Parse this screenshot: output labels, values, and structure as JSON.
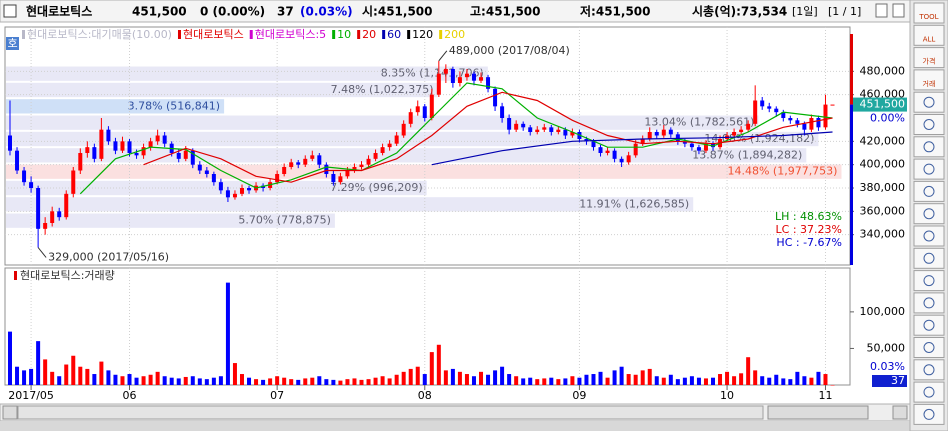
{
  "header": {
    "name": "현대로보틱스",
    "price": "451,500",
    "change": "0 (0.00%)",
    "volume_label": "37",
    "volume_ratio": "(0.03%)",
    "open": "시:451,500",
    "high": "고:451,500",
    "low": "저:451,500",
    "cap": "시총(억):73,534",
    "period": "[1일]",
    "page": "[1 / 1]"
  },
  "toolbar": {
    "buttons": [
      "TOOL",
      "ALL",
      "가격",
      "거래"
    ]
  },
  "chart_data": [
    {
      "type": "candlestick",
      "badge": "호",
      "legend": [
        {
          "name": "현대로보틱스:대기매물(10.00)",
          "color": "#b8b8c8"
        },
        {
          "name": "현대로보틱스",
          "color": "#e00000"
        },
        {
          "name": "현대로보틱스:5",
          "color": "#d000d0"
        },
        {
          "name": "10",
          "color": "#00b000"
        },
        {
          "name": "20",
          "color": "#e00000"
        },
        {
          "name": "60",
          "color": "#0000b0"
        },
        {
          "name": "120",
          "color": "#000000"
        },
        {
          "name": "200",
          "color": "#e8d000"
        }
      ],
      "up_color": "#ff0000",
      "down_color": "#0000ff",
      "ylim": [
        314000,
        518000
      ],
      "yticks": [
        {
          "value": 340000,
          "label": "340,000"
        },
        {
          "value": 360000,
          "label": "360,000"
        },
        {
          "value": 380000,
          "label": "380,000"
        },
        {
          "value": 400000,
          "label": "400,000"
        },
        {
          "value": 420000,
          "label": "420,000"
        },
        {
          "value": 460000,
          "label": "460,000"
        },
        {
          "value": 480000,
          "label": "480,000"
        }
      ],
      "grid": true,
      "ohlc": [
        [
          425000,
          455000,
          408000,
          412000
        ],
        [
          412000,
          415000,
          392000,
          395000
        ],
        [
          395000,
          398000,
          382000,
          385000
        ],
        [
          385000,
          390000,
          376000,
          380000
        ],
        [
          380000,
          382000,
          329000,
          345000
        ],
        [
          345000,
          355000,
          340000,
          350000
        ],
        [
          350000,
          364000,
          347000,
          360000
        ],
        [
          360000,
          363000,
          352000,
          355000
        ],
        [
          355000,
          378000,
          353000,
          375000
        ],
        [
          375000,
          398000,
          372000,
          395000
        ],
        [
          395000,
          414000,
          392000,
          410000
        ],
        [
          410000,
          420000,
          406000,
          415000
        ],
        [
          415000,
          418000,
          402000,
          405000
        ],
        [
          405000,
          440000,
          403000,
          430000
        ],
        [
          430000,
          433000,
          417000,
          420000
        ],
        [
          420000,
          423000,
          409000,
          412000
        ],
        [
          412000,
          424000,
          410000,
          420000
        ],
        [
          420000,
          422000,
          407000,
          410000
        ],
        [
          410000,
          413000,
          405000,
          408000
        ],
        [
          408000,
          418000,
          405000,
          415000
        ],
        [
          415000,
          423000,
          412000,
          420000
        ],
        [
          420000,
          430000,
          417000,
          425000
        ],
        [
          425000,
          428000,
          415000,
          418000
        ],
        [
          418000,
          420000,
          407000,
          410000
        ],
        [
          410000,
          413000,
          402000,
          405000
        ],
        [
          405000,
          416000,
          403000,
          412000
        ],
        [
          412000,
          414000,
          397000,
          400000
        ],
        [
          400000,
          403000,
          392000,
          395000
        ],
        [
          395000,
          398000,
          389000,
          392000
        ],
        [
          392000,
          394000,
          382000,
          385000
        ],
        [
          385000,
          388000,
          375000,
          378000
        ],
        [
          378000,
          381000,
          368000,
          372000
        ],
        [
          372000,
          378000,
          370000,
          375000
        ],
        [
          375000,
          383000,
          373000,
          380000
        ],
        [
          380000,
          382000,
          375000,
          378000
        ],
        [
          378000,
          385000,
          376000,
          382000
        ],
        [
          382000,
          384000,
          377000,
          380000
        ],
        [
          380000,
          388000,
          378000,
          385000
        ],
        [
          385000,
          395000,
          383000,
          392000
        ],
        [
          392000,
          401000,
          390000,
          398000
        ],
        [
          398000,
          405000,
          396000,
          402000
        ],
        [
          402000,
          404000,
          397000,
          400000
        ],
        [
          400000,
          408000,
          398000,
          405000
        ],
        [
          405000,
          412000,
          403000,
          408000
        ],
        [
          408000,
          410000,
          397000,
          400000
        ],
        [
          400000,
          402000,
          389000,
          392000
        ],
        [
          392000,
          395000,
          382000,
          385000
        ],
        [
          385000,
          393000,
          383000,
          390000
        ],
        [
          390000,
          398000,
          388000,
          395000
        ],
        [
          395000,
          401000,
          393000,
          398000
        ],
        [
          398000,
          403000,
          396000,
          400000
        ],
        [
          400000,
          408000,
          398000,
          405000
        ],
        [
          405000,
          413000,
          403000,
          410000
        ],
        [
          410000,
          418000,
          408000,
          415000
        ],
        [
          415000,
          421000,
          412000,
          418000
        ],
        [
          418000,
          428000,
          416000,
          425000
        ],
        [
          425000,
          438000,
          423000,
          435000
        ],
        [
          435000,
          448000,
          432000,
          445000
        ],
        [
          445000,
          455000,
          442000,
          450000
        ],
        [
          450000,
          452000,
          437000,
          440000
        ],
        [
          440000,
          465000,
          438000,
          460000
        ],
        [
          460000,
          489000,
          458000,
          478000
        ],
        [
          478000,
          486000,
          470000,
          482000
        ],
        [
          482000,
          484000,
          466000,
          470000
        ],
        [
          470000,
          480000,
          467000,
          475000
        ],
        [
          475000,
          482000,
          472000,
          478000
        ],
        [
          478000,
          480000,
          468000,
          472000
        ],
        [
          472000,
          479000,
          470000,
          475000
        ],
        [
          475000,
          477000,
          462000,
          465000
        ],
        [
          465000,
          467000,
          446000,
          450000
        ],
        [
          450000,
          453000,
          436000,
          440000
        ],
        [
          440000,
          443000,
          426000,
          430000
        ],
        [
          430000,
          438000,
          428000,
          435000
        ],
        [
          435000,
          437000,
          429000,
          432000
        ],
        [
          432000,
          434000,
          425000,
          428000
        ],
        [
          428000,
          433000,
          426000,
          430000
        ],
        [
          430000,
          435000,
          428000,
          432000
        ],
        [
          432000,
          434000,
          425000,
          428000
        ],
        [
          428000,
          433000,
          426000,
          430000
        ],
        [
          430000,
          432000,
          422000,
          425000
        ],
        [
          425000,
          431000,
          423000,
          428000
        ],
        [
          428000,
          430000,
          419000,
          422000
        ],
        [
          422000,
          424000,
          417000,
          420000
        ],
        [
          420000,
          422000,
          412000,
          415000
        ],
        [
          415000,
          417000,
          407000,
          410000
        ],
        [
          410000,
          415000,
          408000,
          412000
        ],
        [
          412000,
          414000,
          402000,
          405000
        ],
        [
          405000,
          407000,
          398000,
          402000
        ],
        [
          402000,
          411000,
          400000,
          408000
        ],
        [
          408000,
          421000,
          406000,
          418000
        ],
        [
          418000,
          425000,
          416000,
          422000
        ],
        [
          422000,
          432000,
          420000,
          428000
        ],
        [
          428000,
          430000,
          422000,
          425000
        ],
        [
          425000,
          434000,
          423000,
          430000
        ],
        [
          430000,
          432000,
          423000,
          426000
        ],
        [
          426000,
          428000,
          417000,
          420000
        ],
        [
          420000,
          422000,
          415000,
          418000
        ],
        [
          418000,
          420000,
          412000,
          415000
        ],
        [
          415000,
          417000,
          409000,
          412000
        ],
        [
          412000,
          421000,
          410000,
          418000
        ],
        [
          418000,
          420000,
          412000,
          415000
        ],
        [
          415000,
          425000,
          413000,
          422000
        ],
        [
          422000,
          428000,
          420000,
          425000
        ],
        [
          425000,
          431000,
          423000,
          428000
        ],
        [
          428000,
          433000,
          426000,
          430000
        ],
        [
          430000,
          438000,
          428000,
          435000
        ],
        [
          435000,
          468000,
          433000,
          455000
        ],
        [
          455000,
          458000,
          447000,
          450000
        ],
        [
          450000,
          453000,
          445000,
          448000
        ],
        [
          448000,
          450000,
          441000,
          445000
        ],
        [
          445000,
          447000,
          437000,
          440000
        ],
        [
          440000,
          442000,
          435000,
          438000
        ],
        [
          438000,
          440000,
          432000,
          435000
        ],
        [
          435000,
          437000,
          425000,
          430000
        ],
        [
          430000,
          443000,
          428000,
          440000
        ],
        [
          440000,
          442000,
          429000,
          432000
        ],
        [
          432000,
          460000,
          430000,
          451500
        ],
        [
          451500,
          451500,
          451500,
          451500
        ]
      ],
      "series": [
        {
          "name": "10",
          "color": "#00b000",
          "x": [
            10,
            15,
            20,
            25,
            30,
            35,
            40,
            45,
            50,
            55,
            60,
            65,
            70,
            75,
            80,
            85,
            90,
            95,
            100,
            105,
            110,
            117
          ],
          "values": [
            375000,
            405000,
            415000,
            413000,
            395000,
            380000,
            387000,
            398000,
            395000,
            410000,
            440000,
            470000,
            465000,
            440000,
            428000,
            415000,
            415000,
            422000,
            416000,
            428000,
            445000,
            440000
          ]
        },
        {
          "name": "20",
          "color": "#e00000",
          "x": [
            19,
            25,
            30,
            35,
            40,
            45,
            50,
            55,
            60,
            65,
            70,
            75,
            80,
            85,
            90,
            95,
            100,
            105,
            110,
            117
          ],
          "values": [
            400000,
            414000,
            405000,
            390000,
            385000,
            395000,
            395000,
            405000,
            425000,
            450000,
            462000,
            455000,
            438000,
            425000,
            418000,
            420000,
            418000,
            422000,
            432000,
            440000
          ]
        },
        {
          "name": "60",
          "color": "#0000b0",
          "x": [
            60,
            70,
            80,
            90,
            100,
            110,
            117
          ],
          "values": [
            400000,
            412000,
            420000,
            422000,
            423000,
            425000,
            428000
          ]
        }
      ],
      "bands": [
        {
          "value": 8.35,
          "label": "8.35% (1,141,706)",
          "range": [
            471000,
            485000
          ]
        },
        {
          "value": 7.48,
          "label": "7.48% (1,022,375)",
          "range": [
            457000,
            471000
          ]
        },
        {
          "value": 3.78,
          "label": "3.78% (516,841)",
          "range": [
            443000,
            457000
          ],
          "current": true
        },
        {
          "value": 13.04,
          "label": "13.04% (1,782,561)",
          "range": [
            429000,
            443000
          ]
        },
        {
          "value": 14.08,
          "label": "14.08% (1,924,182)",
          "range": [
            415000,
            429000
          ]
        },
        {
          "value": 13.87,
          "label": "13.87% (1,894,282)",
          "range": [
            401000,
            415000
          ]
        },
        {
          "value": 14.48,
          "label": "14.48% (1,977,753)",
          "range": [
            387000,
            401000
          ],
          "max": true
        },
        {
          "value": 7.29,
          "label": "7.29% (996,209)",
          "range": [
            373000,
            387000
          ]
        },
        {
          "value": 11.91,
          "label": "11.91% (1,626,585)",
          "range": [
            359000,
            373000
          ]
        },
        {
          "value": 5.7,
          "label": "5.70% (778,875)",
          "range": [
            345000,
            359000
          ]
        }
      ],
      "annotations": [
        {
          "index": 61,
          "value": 489000,
          "label": "489,000 (2017/08/04)"
        },
        {
          "index": 4,
          "value": 329000,
          "label": "329,000 (2017/05/16)"
        }
      ],
      "current": {
        "value": 451500,
        "label": "451,500",
        "change": 0,
        "change_label": "0.00%"
      },
      "stats": [
        {
          "value": 48.63,
          "label": "LH : 48.63%",
          "color": "#009000"
        },
        {
          "value": 37.23,
          "label": "LC : 37.23%",
          "color": "#e00000"
        },
        {
          "value": -7.67,
          "label": "HC : -7.67%",
          "color": "#0000d0"
        }
      ]
    },
    {
      "type": "bar",
      "title": "현대로보틱스:거래량",
      "values": [
        73000,
        25000,
        20000,
        22000,
        60000,
        35000,
        18000,
        12000,
        28000,
        40000,
        25000,
        22000,
        15000,
        32000,
        20000,
        14000,
        12000,
        15000,
        10000,
        12000,
        14000,
        18000,
        12000,
        10000,
        9000,
        11000,
        12000,
        9000,
        8000,
        10000,
        12000,
        140000,
        30000,
        15000,
        10000,
        8000,
        7000,
        9000,
        12000,
        10000,
        8000,
        7000,
        9000,
        10000,
        12000,
        8000,
        7000,
        6000,
        8000,
        9000,
        7000,
        8000,
        10000,
        12000,
        9000,
        14000,
        18000,
        22000,
        25000,
        15000,
        45000,
        55000,
        20000,
        22000,
        18000,
        15000,
        12000,
        18000,
        14000,
        20000,
        25000,
        15000,
        12000,
        9000,
        10000,
        8000,
        9000,
        10000,
        8000,
        9000,
        12000,
        10000,
        14000,
        15000,
        18000,
        10000,
        20000,
        25000,
        15000,
        14000,
        20000,
        22000,
        12000,
        10000,
        14000,
        8000,
        10000,
        12000,
        10000,
        9000,
        10000,
        15000,
        18000,
        12000,
        16000,
        38000,
        20000,
        12000,
        10000,
        14000,
        9000,
        8000,
        18000,
        12000,
        10000,
        18000,
        15000,
        37
      ],
      "ylim": [
        0,
        160000
      ],
      "yticks": [
        {
          "value": 50000,
          "label": "50,000"
        },
        {
          "value": 100000,
          "label": "100,000"
        }
      ],
      "last_ratio": {
        "value": 0.03,
        "label": "0.03%"
      },
      "last_volume": 37,
      "xticks": [
        {
          "value": 3,
          "label": "2017/05"
        },
        {
          "value": 17,
          "label": "06"
        },
        {
          "value": 38,
          "label": "07"
        },
        {
          "value": 59,
          "label": "08"
        },
        {
          "value": 81,
          "label": "09"
        },
        {
          "value": 102,
          "label": "10"
        },
        {
          "value": 116,
          "label": "11"
        }
      ]
    }
  ]
}
